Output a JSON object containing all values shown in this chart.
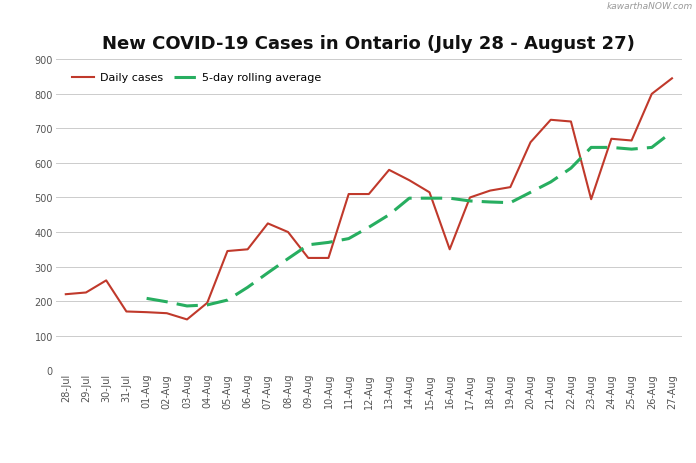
{
  "title": "New COVID-19 Cases in Ontario (July 28 - August 27)",
  "watermark": "kawarthaNOW.com",
  "labels": [
    "28-Jul",
    "29-Jul",
    "30-Jul",
    "31-Jul",
    "01-Aug",
    "02-Aug",
    "03-Aug",
    "04-Aug",
    "05-Aug",
    "06-Aug",
    "07-Aug",
    "08-Aug",
    "09-Aug",
    "10-Aug",
    "11-Aug",
    "12-Aug",
    "13-Aug",
    "14-Aug",
    "15-Aug",
    "16-Aug",
    "17-Aug",
    "18-Aug",
    "19-Aug",
    "20-Aug",
    "21-Aug",
    "22-Aug",
    "23-Aug",
    "24-Aug",
    "25-Aug",
    "26-Aug",
    "27-Aug"
  ],
  "daily_cases": [
    220,
    225,
    260,
    170,
    168,
    165,
    147,
    195,
    345,
    350,
    425,
    400,
    325,
    325,
    510,
    510,
    580,
    550,
    515,
    350,
    500,
    520,
    530,
    660,
    725,
    720,
    495,
    670,
    665,
    800,
    845
  ],
  "rolling_avg": [
    null,
    null,
    null,
    null,
    208,
    198,
    186,
    189,
    203,
    240,
    282,
    323,
    363,
    370,
    381,
    414,
    450,
    498,
    498,
    498,
    490,
    487,
    485,
    515,
    545,
    585,
    645,
    645,
    640,
    645,
    690
  ],
  "ylim": [
    0,
    900
  ],
  "yticks": [
    0,
    100,
    200,
    300,
    400,
    500,
    600,
    700,
    800,
    900
  ],
  "line_color_daily": "#c0392b",
  "line_color_rolling": "#27ae60",
  "legend_daily": "Daily cases",
  "legend_rolling": "5-day rolling average",
  "bg_color": "#ffffff",
  "grid_color": "#cccccc",
  "title_fontsize": 13,
  "tick_fontsize": 7,
  "legend_fontsize": 8
}
